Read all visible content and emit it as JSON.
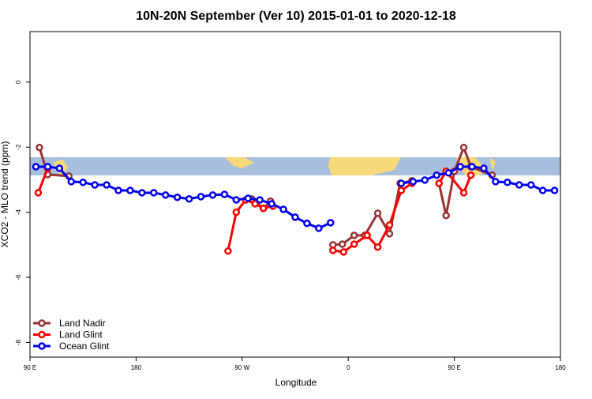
{
  "chart_data": {
    "type": "line",
    "title": "10N-20N September (Ver 10)   2015-01-01 to 2020-12-18",
    "x_label": "Longitude",
    "y_label": "XCO2 - MLO trend (ppm)",
    "xlim": [
      90,
      540
    ],
    "xticks": [
      {
        "value": 90,
        "label": "90 E"
      },
      180,
      {
        "value": 270,
        "label": "90 W"
      },
      {
        "value": 360,
        "label": "0"
      },
      {
        "value": 450,
        "label": "90 E"
      },
      180
    ],
    "ylim": [
      -8.45,
      1.55
    ],
    "yticks": [
      0,
      -2,
      -4,
      -6,
      -8
    ],
    "legend": "bottom-left",
    "series": [
      {
        "name": "Land Nadir",
        "color": "#993333",
        "x": [
          98,
          105,
          123,
          200,
          278,
          288,
          294,
          320,
          347,
          355,
          365,
          374,
          385,
          395,
          404,
          414,
          425,
          437,
          443,
          450,
          458,
          464,
          482
        ],
        "values": [
          -2.01,
          -2.84,
          -2.89,
          null,
          -3.59,
          -3.88,
          -3.66,
          null,
          -5.0,
          -4.98,
          -4.71,
          -4.71,
          -4.03,
          -4.66,
          -3.11,
          -3.03,
          null,
          -3.11,
          -4.1,
          -2.74,
          -2.01,
          -2.6,
          -2.86
        ]
      },
      {
        "name": "Land Glint",
        "color": "#ff0000",
        "x": [
          97,
          105,
          200,
          258,
          265,
          273,
          281,
          288,
          296,
          320,
          347,
          356,
          365,
          376,
          385,
          395,
          405,
          414,
          425,
          437,
          443,
          458,
          464
        ],
        "values": [
          -3.4,
          -2.65,
          null,
          -5.19,
          -4.0,
          -3.62,
          -3.74,
          -3.88,
          -3.81,
          null,
          -5.17,
          -5.22,
          -4.98,
          -4.71,
          -5.07,
          -4.39,
          -3.33,
          -3.11,
          null,
          -3.11,
          -2.74,
          -3.4,
          -2.86
        ]
      },
      {
        "name": "Ocean Glint",
        "color": "#0000ee",
        "x": [
          95,
          105,
          115,
          125,
          135,
          145,
          155,
          165,
          175,
          185,
          195,
          205,
          215,
          225,
          235,
          245,
          255,
          265,
          275,
          285,
          295,
          305,
          315,
          325,
          335,
          345,
          355,
          405,
          415,
          425,
          435,
          445,
          455,
          465,
          475,
          485,
          495,
          505,
          515,
          525,
          535
        ],
        "values": [
          -2.6,
          -2.6,
          -2.65,
          -3.06,
          -3.08,
          -3.16,
          -3.16,
          -3.33,
          -3.33,
          -3.4,
          -3.4,
          -3.47,
          -3.54,
          -3.59,
          -3.52,
          -3.47,
          -3.45,
          -3.62,
          -3.57,
          -3.62,
          -3.74,
          -3.91,
          -4.15,
          -4.34,
          -4.49,
          -4.32,
          null,
          -3.11,
          -3.06,
          -3.01,
          -2.86,
          -2.79,
          -2.6,
          -2.6,
          -2.65,
          -3.06,
          -3.08,
          -3.16,
          -3.16,
          -3.33,
          -3.33
        ]
      }
    ]
  }
}
